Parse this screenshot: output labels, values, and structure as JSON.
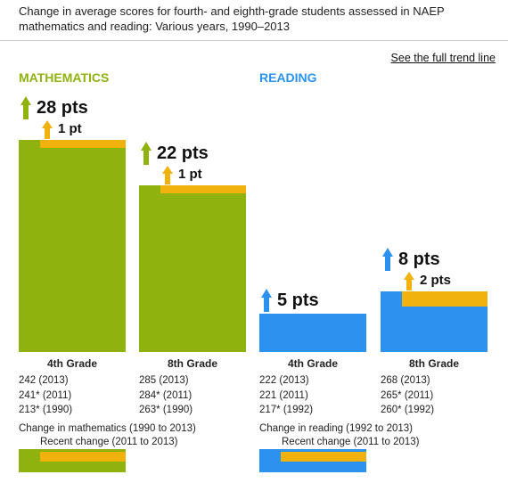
{
  "header": {
    "title": "Change in average scores for fourth- and eighth-grade students assessed in NAEP mathematics and reading: Various years, 1990–2013",
    "link": "See the full trend line"
  },
  "colors": {
    "math": "#8fb20f",
    "reading": "#2b93ef",
    "recent": "#f2b20e"
  },
  "chart_data": [
    {
      "type": "bar",
      "title": "MATHEMATICS",
      "series": [
        {
          "grade": "4th Grade",
          "total_change": 28,
          "total_label": "28 pts",
          "recent_change": 1,
          "recent_label": "1 pt",
          "scores": [
            "242  (2013)",
            "241* (2011)",
            "213* (1990)"
          ]
        },
        {
          "grade": "8th Grade",
          "total_change": 22,
          "total_label": "22 pts",
          "recent_change": 1,
          "recent_label": "1 pt",
          "scores": [
            "285  (2013)",
            "284* (2011)",
            "263* (1990)"
          ]
        }
      ],
      "legend": {
        "total": "Change in mathematics (1990 to 2013)",
        "recent": "Recent change (2011 to 2013)"
      }
    },
    {
      "type": "bar",
      "title": "READING",
      "series": [
        {
          "grade": "4th Grade",
          "total_change": 5,
          "total_label": "5 pts",
          "recent_change": 0,
          "recent_label": "",
          "scores": [
            "222  (2013)",
            "221  (2011)",
            "217* (1992)"
          ]
        },
        {
          "grade": "8th Grade",
          "total_change": 8,
          "total_label": "8 pts",
          "recent_change": 2,
          "recent_label": "2 pts",
          "scores": [
            "268  (2013)",
            "265* (2011)",
            "260* (1992)"
          ]
        }
      ],
      "legend": {
        "total": "Change in reading (1992 to 2013)",
        "recent": "Recent change (2011 to 2013)"
      }
    }
  ]
}
